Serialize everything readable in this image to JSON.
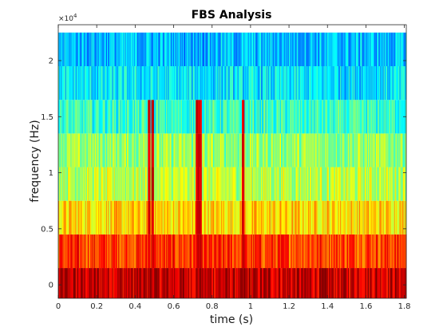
{
  "chart_data": {
    "type": "heatmap",
    "title": "FBS Analysis",
    "xlabel": "time (s)",
    "ylabel": "frequency (Hz)",
    "xlim": [
      0,
      1.81
    ],
    "ylim": [
      -1200,
      23200
    ],
    "x_ticks": [
      0,
      0.2,
      0.4,
      0.6,
      0.8,
      1.0,
      1.2,
      1.4,
      1.6,
      1.8
    ],
    "x_tick_labels": [
      "0",
      "0.2",
      "0.4",
      "0.6",
      "0.8",
      "1",
      "1.2",
      "1.4",
      "1.6",
      "1.8"
    ],
    "y_ticks": [
      0,
      5000,
      10000,
      15000,
      20000
    ],
    "y_tick_labels": [
      "0",
      "0.5",
      "1",
      "1.5",
      "2"
    ],
    "y_exponent_label": "×10",
    "y_exponent_power": "4",
    "frequency_bands_hz": [
      0,
      3000,
      6000,
      9000,
      12000,
      15000,
      18000,
      21000
    ],
    "band_half_width_hz": 1500,
    "band_mean_levels": [
      0.93,
      0.82,
      0.66,
      0.56,
      0.52,
      0.42,
      0.35,
      0.31
    ],
    "strong_events_s": [
      0.47,
      0.49,
      0.72,
      0.73,
      0.74,
      0.96
    ],
    "colormap": "jet",
    "grid": false
  }
}
